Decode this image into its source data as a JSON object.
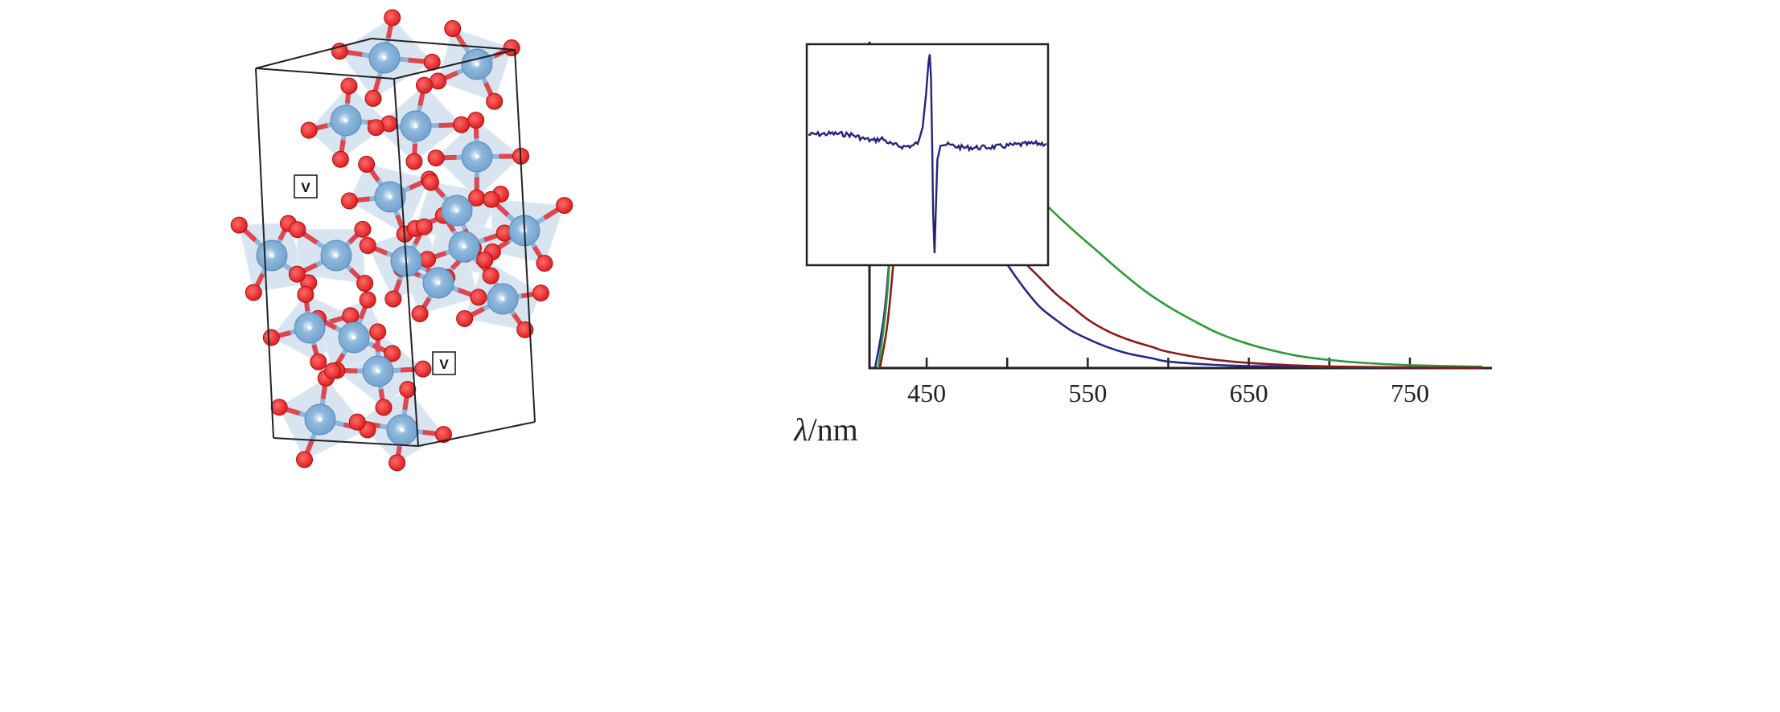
{
  "structure": {
    "vacancy_label": "V",
    "colors": {
      "metal": "#6f9fcc",
      "oxygen": "#dd1f1f",
      "polyhedra": "#a9c6de",
      "cell": "#222222"
    }
  },
  "chart_data": [
    {
      "type": "line",
      "title": "",
      "xlabel_symbol": "λ",
      "xlabel_unit": "/nm",
      "ylabel": "",
      "xlim": [
        414.5,
        800
      ],
      "ylim": [
        0,
        1
      ],
      "grid": false,
      "x_ticks": [
        450,
        500,
        550,
        600,
        650,
        700,
        750
      ],
      "x_tick_labels": [
        "450",
        "550",
        "650",
        "750"
      ],
      "series": [
        {
          "name": "blue",
          "color": "#27278a",
          "points": [
            [
              418,
              0
            ],
            [
              424,
              0.18
            ],
            [
              430,
              0.52
            ],
            [
              436,
              0.8
            ],
            [
              442,
              0.93
            ],
            [
              448,
              0.9
            ],
            [
              455,
              0.82
            ],
            [
              462,
              0.72
            ],
            [
              470,
              0.62
            ],
            [
              480,
              0.5
            ],
            [
              490,
              0.4
            ],
            [
              500,
              0.32
            ],
            [
              510,
              0.25
            ],
            [
              520,
              0.19
            ],
            [
              530,
              0.15
            ],
            [
              540,
              0.115
            ],
            [
              550,
              0.09
            ],
            [
              562,
              0.065
            ],
            [
              575,
              0.045
            ],
            [
              590,
              0.03
            ],
            [
              600,
              0.02
            ],
            [
              625,
              0.011
            ],
            [
              650,
              0.006
            ],
            [
              700,
              0.003
            ],
            [
              750,
              0.002
            ],
            [
              795,
              0.001
            ]
          ]
        },
        {
          "name": "green",
          "color": "#2a9a3a",
          "points": [
            [
              420,
              0
            ],
            [
              425,
              0.2
            ],
            [
              430,
              0.52
            ],
            [
              436,
              0.66
            ],
            [
              445,
              0.72
            ],
            [
              455,
              0.76
            ],
            [
              465,
              0.77
            ],
            [
              475,
              0.745
            ],
            [
              485,
              0.71
            ],
            [
              497,
              0.65
            ],
            [
              510,
              0.58
            ],
            [
              525,
              0.5
            ],
            [
              540,
              0.43
            ],
            [
              555,
              0.365
            ],
            [
              570,
              0.3
            ],
            [
              585,
              0.24
            ],
            [
              600,
              0.19
            ],
            [
              615,
              0.148
            ],
            [
              630,
              0.11
            ],
            [
              645,
              0.082
            ],
            [
              660,
              0.06
            ],
            [
              680,
              0.038
            ],
            [
              700,
              0.025
            ],
            [
              725,
              0.015
            ],
            [
              750,
              0.009
            ],
            [
              795,
              0.004
            ]
          ]
        },
        {
          "name": "red",
          "color": "#8b1a1a",
          "points": [
            [
              421,
              0
            ],
            [
              426,
              0.15
            ],
            [
              432,
              0.45
            ],
            [
              438,
              0.58
            ],
            [
              445,
              0.625
            ],
            [
              455,
              0.64
            ],
            [
              462,
              0.625
            ],
            [
              470,
              0.585
            ],
            [
              480,
              0.52
            ],
            [
              490,
              0.46
            ],
            [
              500,
              0.39
            ],
            [
              510,
              0.33
            ],
            [
              520,
              0.28
            ],
            [
              530,
              0.23
            ],
            [
              540,
              0.19
            ],
            [
              550,
              0.15
            ],
            [
              562,
              0.115
            ],
            [
              575,
              0.088
            ],
            [
              590,
              0.065
            ],
            [
              600,
              0.05
            ],
            [
              625,
              0.028
            ],
            [
              650,
              0.016
            ],
            [
              675,
              0.009
            ],
            [
              700,
              0.005
            ],
            [
              750,
              0.002
            ],
            [
              795,
              0.001
            ]
          ]
        }
      ]
    },
    {
      "type": "line",
      "title": "",
      "xlabel": "",
      "ylabel": "",
      "xlim": [
        0,
        100
      ],
      "ylim": [
        -1,
        1
      ],
      "series": [
        {
          "name": "inset-signal",
          "color": "#23237e",
          "points": [
            [
              0,
              0.18
            ],
            [
              10,
              0.19
            ],
            [
              18,
              0.18
            ],
            [
              23,
              0.14
            ],
            [
              27,
              0.12
            ],
            [
              31,
              0.14
            ],
            [
              35,
              0.08
            ],
            [
              40,
              0.06
            ],
            [
              44,
              0.07
            ],
            [
              46.5,
              0.11
            ],
            [
              48,
              0.25
            ],
            [
              49.5,
              0.6
            ],
            [
              50.5,
              0.92
            ],
            [
              51,
              0.98
            ],
            [
              51.5,
              0.75
            ],
            [
              52,
              0.1
            ],
            [
              52.4,
              -0.6
            ],
            [
              53,
              -1.0
            ],
            [
              53.5,
              -0.6
            ],
            [
              54.2,
              -0.05
            ],
            [
              55.5,
              0.09
            ],
            [
              58,
              0.08
            ],
            [
              65,
              0.05
            ],
            [
              72,
              0.05
            ],
            [
              80,
              0.06
            ],
            [
              88,
              0.08
            ],
            [
              95,
              0.09
            ],
            [
              100,
              0.09
            ]
          ]
        }
      ]
    }
  ]
}
